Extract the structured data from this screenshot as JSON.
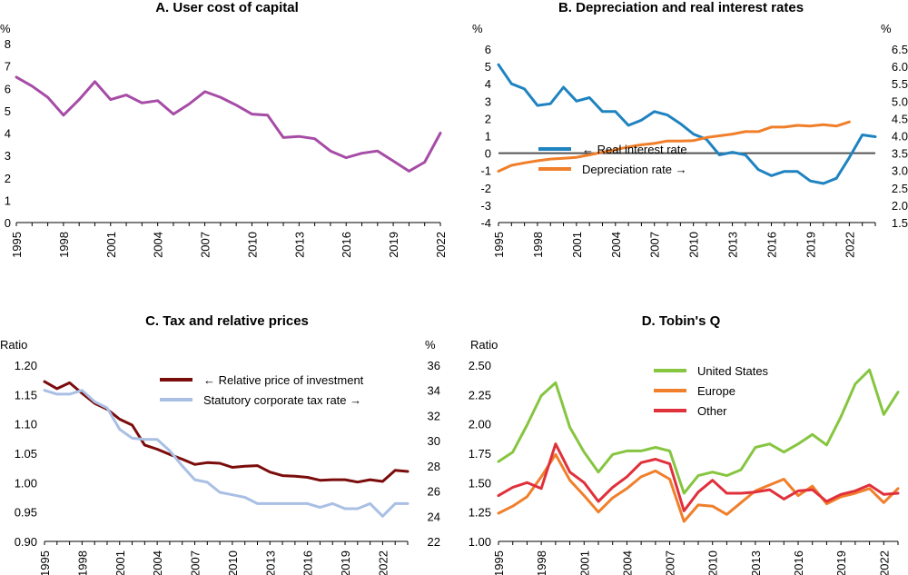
{
  "colors": {
    "purple": "#a64ca6",
    "blue": "#1f83c0",
    "orange": "#f07f2b",
    "darkred": "#7b0c0c",
    "lightblue": "#a9bfe4",
    "green": "#86c540",
    "red": "#e0303b",
    "axis": "#000000",
    "zero_line": "#555555"
  },
  "chart_data": [
    {
      "id": "A",
      "type": "line",
      "title": "A. User cost of capital",
      "ylabel_left": "%",
      "ylim": [
        0,
        8
      ],
      "yticks": [
        0,
        1,
        2,
        3,
        4,
        5,
        6,
        7,
        8
      ],
      "xlim": [
        1995,
        2022
      ],
      "xticks": [
        1995,
        1998,
        2001,
        2004,
        2007,
        2010,
        2013,
        2016,
        2019,
        2022
      ],
      "series": [
        {
          "name": "User cost of capital",
          "color_key": "purple",
          "x": [
            1995,
            1996,
            1997,
            1998,
            1999,
            2000,
            2001,
            2002,
            2003,
            2004,
            2005,
            2006,
            2007,
            2008,
            2009,
            2010,
            2011,
            2012,
            2013,
            2014,
            2015,
            2016,
            2017,
            2018,
            2019,
            2020,
            2021,
            2022
          ],
          "values": [
            6.5,
            6.1,
            5.6,
            4.8,
            5.5,
            6.3,
            5.5,
            5.7,
            5.35,
            5.45,
            4.85,
            5.3,
            5.85,
            5.6,
            5.25,
            4.85,
            4.8,
            3.8,
            3.85,
            3.75,
            3.2,
            2.9,
            3.1,
            3.2,
            2.75,
            2.3,
            2.7,
            4.0
          ]
        }
      ]
    },
    {
      "id": "B",
      "type": "line",
      "title": "B. Depreciation and real interest rates",
      "ylabel_left": "%",
      "ylabel_right": "%",
      "ylim": [
        -4,
        6
      ],
      "yticks": [
        -4,
        -3,
        -2,
        -1,
        0,
        1,
        2,
        3,
        4,
        5,
        6
      ],
      "ylim_right": [
        1.5,
        6.5
      ],
      "yticks_right": [
        "1.5",
        "2.0",
        "2.5",
        "3.0",
        "3.5",
        "4.0",
        "4.5",
        "5.0",
        "5.5",
        "6.0",
        "6.5"
      ],
      "xlim": [
        1995,
        2024
      ],
      "xticks": [
        1995,
        1998,
        2001,
        2004,
        2007,
        2010,
        2013,
        2016,
        2019,
        2022
      ],
      "zero_line": 0,
      "series": [
        {
          "name": "← Real interest rate",
          "axis": "left",
          "color_key": "blue",
          "x": [
            1995,
            1996,
            1997,
            1998,
            1999,
            2000,
            2001,
            2002,
            2003,
            2004,
            2005,
            2006,
            2007,
            2008,
            2009,
            2010,
            2011,
            2012,
            2013,
            2014,
            2015,
            2016,
            2017,
            2018,
            2019,
            2020,
            2021,
            2022,
            2023,
            2024
          ],
          "values": [
            5.1,
            4.0,
            3.7,
            2.75,
            2.85,
            3.8,
            3.0,
            3.2,
            2.4,
            2.4,
            1.6,
            1.9,
            2.4,
            2.2,
            1.7,
            1.1,
            0.8,
            -0.1,
            0.05,
            -0.1,
            -0.95,
            -1.3,
            -1.05,
            -1.05,
            -1.6,
            -1.75,
            -1.45,
            -0.25,
            1.05,
            0.95
          ]
        },
        {
          "name": "Depreciation rate →",
          "axis": "right",
          "color_key": "orange",
          "x": [
            1995,
            1996,
            1997,
            1998,
            1999,
            2000,
            2001,
            2002,
            2003,
            2004,
            2005,
            2006,
            2007,
            2008,
            2009,
            2010,
            2011,
            2012,
            2013,
            2014,
            2015,
            2016,
            2017,
            2018,
            2019,
            2020,
            2021,
            2022
          ],
          "values": [
            2.98,
            3.15,
            3.22,
            3.28,
            3.33,
            3.35,
            3.38,
            3.45,
            3.53,
            3.6,
            3.68,
            3.74,
            3.78,
            3.85,
            3.85,
            3.86,
            3.95,
            4.0,
            4.05,
            4.12,
            4.12,
            4.25,
            4.25,
            4.3,
            4.28,
            4.32,
            4.28,
            4.4
          ]
        }
      ],
      "legend": [
        "← Real interest rate",
        "Depreciation rate →"
      ]
    },
    {
      "id": "C",
      "type": "line",
      "title": "C. Tax and relative prices",
      "ylabel_left": "Ratio",
      "ylabel_right": "%",
      "ylim": [
        0.9,
        1.2
      ],
      "yticks": [
        "0.90",
        "0.95",
        "1.00",
        "1.05",
        "1.10",
        "1.15",
        "1.20"
      ],
      "ylim_right": [
        22,
        36
      ],
      "yticks_right": [
        "22",
        "24",
        "26",
        "28",
        "30",
        "32",
        "34",
        "36"
      ],
      "xlim": [
        1995,
        2024
      ],
      "xticks": [
        1995,
        1998,
        2001,
        2004,
        2007,
        2010,
        2013,
        2016,
        2019,
        2022
      ],
      "series": [
        {
          "name": "← Relative price of investment",
          "axis": "left",
          "color_key": "darkred",
          "x": [
            1995,
            1996,
            1997,
            1998,
            1999,
            2000,
            2001,
            2002,
            2003,
            2004,
            2005,
            2006,
            2007,
            2008,
            2009,
            2010,
            2011,
            2012,
            2013,
            2014,
            2015,
            2016,
            2017,
            2018,
            2019,
            2020,
            2021,
            2022,
            2023,
            2024
          ],
          "values": [
            1.172,
            1.16,
            1.17,
            1.152,
            1.135,
            1.125,
            1.108,
            1.098,
            1.064,
            1.057,
            1.048,
            1.04,
            1.031,
            1.034,
            1.033,
            1.026,
            1.028,
            1.029,
            1.018,
            1.012,
            1.011,
            1.009,
            1.004,
            1.005,
            1.005,
            1.001,
            1.005,
            1.002,
            1.021,
            1.019
          ]
        },
        {
          "name": "Statutory corporate tax rate →",
          "axis": "right",
          "color_key": "lightblue",
          "x": [
            1995,
            1996,
            1997,
            1998,
            1999,
            2000,
            2001,
            2002,
            2003,
            2004,
            2005,
            2006,
            2007,
            2008,
            2009,
            2010,
            2011,
            2012,
            2013,
            2014,
            2015,
            2016,
            2017,
            2018,
            2019,
            2020,
            2021,
            2022,
            2023,
            2024
          ],
          "values": [
            34.0,
            33.7,
            33.7,
            34.0,
            33.1,
            32.6,
            30.9,
            30.2,
            30.1,
            30.1,
            29.2,
            28.0,
            26.9,
            26.7,
            25.9,
            25.7,
            25.5,
            25.0,
            25.0,
            25.0,
            25.0,
            25.0,
            24.7,
            25.0,
            24.6,
            24.6,
            25.0,
            24.0,
            25.0,
            25.0
          ]
        }
      ],
      "legend": [
        "← Relative price of investment",
        "Statutory corporate tax rate →"
      ]
    },
    {
      "id": "D",
      "type": "line",
      "title": "D. Tobin's Q",
      "ylabel_left": "Ratio",
      "ylim": [
        1.0,
        2.5
      ],
      "yticks": [
        "1.00",
        "1.25",
        "1.50",
        "1.75",
        "2.00",
        "2.25",
        "2.50"
      ],
      "xlim": [
        1995,
        2023
      ],
      "xticks": [
        1995,
        1998,
        2001,
        2004,
        2007,
        2010,
        2013,
        2016,
        2019,
        2022
      ],
      "series": [
        {
          "name": "United States",
          "color_key": "green",
          "x": [
            1995,
            1996,
            1997,
            1998,
            1999,
            2000,
            2001,
            2002,
            2003,
            2004,
            2005,
            2006,
            2007,
            2008,
            2009,
            2010,
            2011,
            2012,
            2013,
            2014,
            2015,
            2016,
            2017,
            2018,
            2019,
            2020,
            2021,
            2022,
            2023
          ],
          "values": [
            1.68,
            1.76,
            1.99,
            2.24,
            2.35,
            1.97,
            1.76,
            1.59,
            1.74,
            1.77,
            1.77,
            1.8,
            1.77,
            1.41,
            1.56,
            1.59,
            1.56,
            1.61,
            1.8,
            1.83,
            1.76,
            1.83,
            1.91,
            1.82,
            2.06,
            2.34,
            2.46,
            2.08,
            2.27
          ]
        },
        {
          "name": "Europe",
          "color_key": "orange",
          "x": [
            1995,
            1996,
            1997,
            1998,
            1999,
            2000,
            2001,
            2002,
            2003,
            2004,
            2005,
            2006,
            2007,
            2008,
            2009,
            2010,
            2011,
            2012,
            2013,
            2014,
            2015,
            2016,
            2017,
            2018,
            2019,
            2020,
            2021,
            2022,
            2023
          ],
          "values": [
            1.24,
            1.3,
            1.38,
            1.55,
            1.74,
            1.52,
            1.39,
            1.25,
            1.37,
            1.45,
            1.55,
            1.6,
            1.53,
            1.17,
            1.31,
            1.3,
            1.23,
            1.33,
            1.43,
            1.48,
            1.53,
            1.39,
            1.47,
            1.32,
            1.38,
            1.41,
            1.45,
            1.33,
            1.45
          ]
        },
        {
          "name": "Other",
          "color_key": "red",
          "x": [
            1995,
            1996,
            1997,
            1998,
            1999,
            2000,
            2001,
            2002,
            2003,
            2004,
            2005,
            2006,
            2007,
            2008,
            2009,
            2010,
            2011,
            2012,
            2013,
            2014,
            2015,
            2016,
            2017,
            2018,
            2019,
            2020,
            2021,
            2022,
            2023
          ],
          "values": [
            1.39,
            1.46,
            1.5,
            1.45,
            1.83,
            1.59,
            1.5,
            1.34,
            1.46,
            1.55,
            1.67,
            1.7,
            1.66,
            1.26,
            1.42,
            1.52,
            1.41,
            1.41,
            1.42,
            1.44,
            1.36,
            1.43,
            1.44,
            1.34,
            1.4,
            1.43,
            1.48,
            1.4,
            1.41
          ]
        }
      ],
      "legend": [
        "United States",
        "Europe",
        "Other"
      ]
    }
  ]
}
